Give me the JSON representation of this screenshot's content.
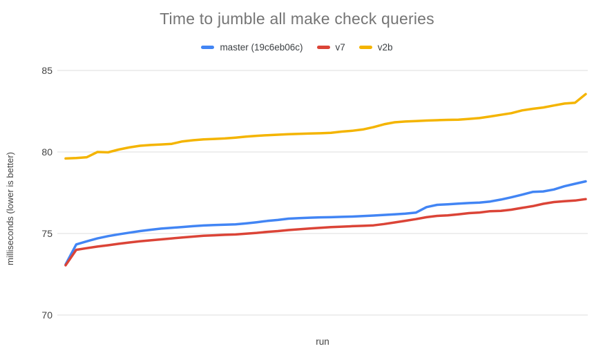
{
  "chart_data": {
    "type": "line",
    "title": "Time to jumble all make check queries",
    "xlabel": "run",
    "ylabel": "milliseconds (lower is better)",
    "yticks": [
      85,
      80,
      75,
      70
    ],
    "ylim": [
      70,
      85
    ],
    "grid": true,
    "legend_position": "top",
    "background_color": "#ffffff",
    "gridline_color": "#dcdcdc",
    "title_color": "#757575",
    "axis_text_color": "#424242",
    "legend_text_color": "#3c4043",
    "x": [
      1,
      2,
      3,
      4,
      5,
      6,
      7,
      8,
      9,
      10,
      11,
      12,
      13,
      14,
      15,
      16,
      17,
      18,
      19,
      20,
      21,
      22,
      23,
      24,
      25,
      26,
      27,
      28,
      29,
      30,
      31,
      32,
      33,
      34,
      35,
      36,
      37,
      38,
      39,
      40,
      41,
      42,
      43,
      44,
      45,
      46,
      47,
      48,
      49,
      50
    ],
    "series": [
      {
        "name": "master (19c6eb06c)",
        "color": "#4285f4",
        "values": [
          73.1,
          74.33,
          74.52,
          74.7,
          74.84,
          74.95,
          75.05,
          75.15,
          75.23,
          75.3,
          75.35,
          75.4,
          75.45,
          75.49,
          75.52,
          75.54,
          75.56,
          75.62,
          75.69,
          75.77,
          75.83,
          75.91,
          75.94,
          75.97,
          75.99,
          76.0,
          76.02,
          76.04,
          76.07,
          76.1,
          76.14,
          76.18,
          76.22,
          76.28,
          76.62,
          76.76,
          76.79,
          76.83,
          76.87,
          76.9,
          76.96,
          77.08,
          77.22,
          77.38,
          77.55,
          77.58,
          77.7,
          77.9,
          78.05,
          78.2
        ]
      },
      {
        "name": "v7",
        "color": "#db4437",
        "values": [
          73.05,
          74.0,
          74.1,
          74.2,
          74.28,
          74.37,
          74.45,
          74.52,
          74.58,
          74.64,
          74.7,
          74.76,
          74.81,
          74.86,
          74.89,
          74.92,
          74.94,
          74.99,
          75.04,
          75.1,
          75.15,
          75.21,
          75.26,
          75.31,
          75.35,
          75.39,
          75.42,
          75.45,
          75.47,
          75.5,
          75.58,
          75.68,
          75.78,
          75.88,
          76.0,
          76.08,
          76.11,
          76.18,
          76.25,
          76.29,
          76.37,
          76.39,
          76.46,
          76.57,
          76.68,
          76.82,
          76.93,
          76.98,
          77.02,
          77.11
        ]
      },
      {
        "name": "v2b",
        "color": "#f4b400",
        "values": [
          79.6,
          79.63,
          79.68,
          80.0,
          79.98,
          80.15,
          80.28,
          80.38,
          80.43,
          80.46,
          80.5,
          80.65,
          80.72,
          80.77,
          80.8,
          80.83,
          80.88,
          80.94,
          80.99,
          81.03,
          81.06,
          81.09,
          81.11,
          81.13,
          81.15,
          81.18,
          81.25,
          81.3,
          81.38,
          81.52,
          81.7,
          81.82,
          81.87,
          81.9,
          81.93,
          81.95,
          81.97,
          81.98,
          82.03,
          82.08,
          82.18,
          82.28,
          82.38,
          82.55,
          82.65,
          82.73,
          82.85,
          82.97,
          83.02,
          83.55
        ]
      }
    ]
  }
}
